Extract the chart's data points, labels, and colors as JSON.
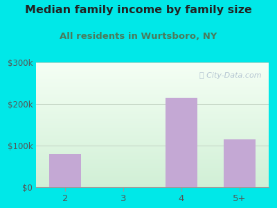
{
  "title": "Median family income by family size",
  "subtitle": "All residents in Wurtsboro, NY",
  "categories": [
    "2",
    "3",
    "4",
    "5+"
  ],
  "values": [
    80000,
    0,
    215000,
    115000
  ],
  "bar_color": "#c4a8d4",
  "bg_color": "#00e8e8",
  "ylim": [
    0,
    300000
  ],
  "yticks": [
    0,
    100000,
    200000,
    300000
  ],
  "ytick_labels": [
    "$0",
    "$100k",
    "$200k",
    "$300k"
  ],
  "title_color": "#222222",
  "subtitle_color": "#4a7a5a",
  "tick_color": "#555555",
  "watermark": "ⓘ City-Data.com",
  "watermark_color": "#aabbcc",
  "title_fontsize": 11.5,
  "subtitle_fontsize": 9.5,
  "plot_bg_top": "#f0faf0",
  "plot_bg_bottom": "#d8f0d8"
}
